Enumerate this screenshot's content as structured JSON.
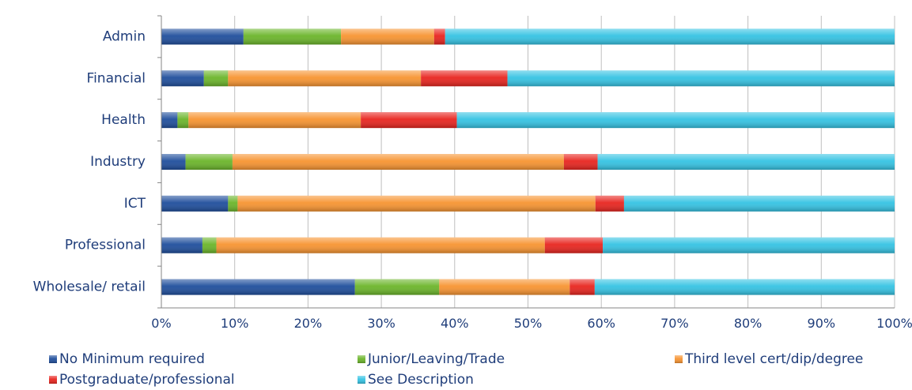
{
  "header": {
    "fragment_left": "",
    "fragment_right": ""
  },
  "chart_data": {
    "type": "bar",
    "orientation": "horizontal",
    "stacked": "percent",
    "categories": [
      "Admin",
      "Financial",
      "Health",
      "Industry",
      "ICT",
      "Professional",
      "Wholesale/ retail"
    ],
    "series": [
      {
        "name": "No Minimum required",
        "color": "#1f4e9c",
        "values": [
          11.2,
          5.8,
          2.2,
          3.3,
          9.1,
          5.6,
          26.4
        ]
      },
      {
        "name": "Junior/Leaving/Trade",
        "color": "#6bb52a",
        "values": [
          13.3,
          3.3,
          1.5,
          6.4,
          1.3,
          1.9,
          11.5
        ]
      },
      {
        "name": "Third level cert/dip/degree",
        "color": "#f79431",
        "values": [
          12.7,
          26.3,
          23.5,
          45.2,
          48.8,
          44.8,
          17.8
        ]
      },
      {
        "name": "Postgraduate/professional",
        "color": "#e8251f",
        "values": [
          1.5,
          11.8,
          13.1,
          4.6,
          3.9,
          7.9,
          3.4
        ]
      },
      {
        "name": "See Description",
        "color": "#35c3e3",
        "values": [
          61.3,
          52.8,
          59.7,
          40.5,
          36.9,
          39.8,
          40.9
        ]
      }
    ],
    "xaxis": {
      "ticks": [
        "0%",
        "10%",
        "20%",
        "30%",
        "40%",
        "50%",
        "60%",
        "70%",
        "80%",
        "90%",
        "100%"
      ],
      "range": [
        0,
        100
      ]
    },
    "xlabel": "",
    "ylabel": "",
    "grid": "vertical",
    "legend_position": "bottom"
  }
}
